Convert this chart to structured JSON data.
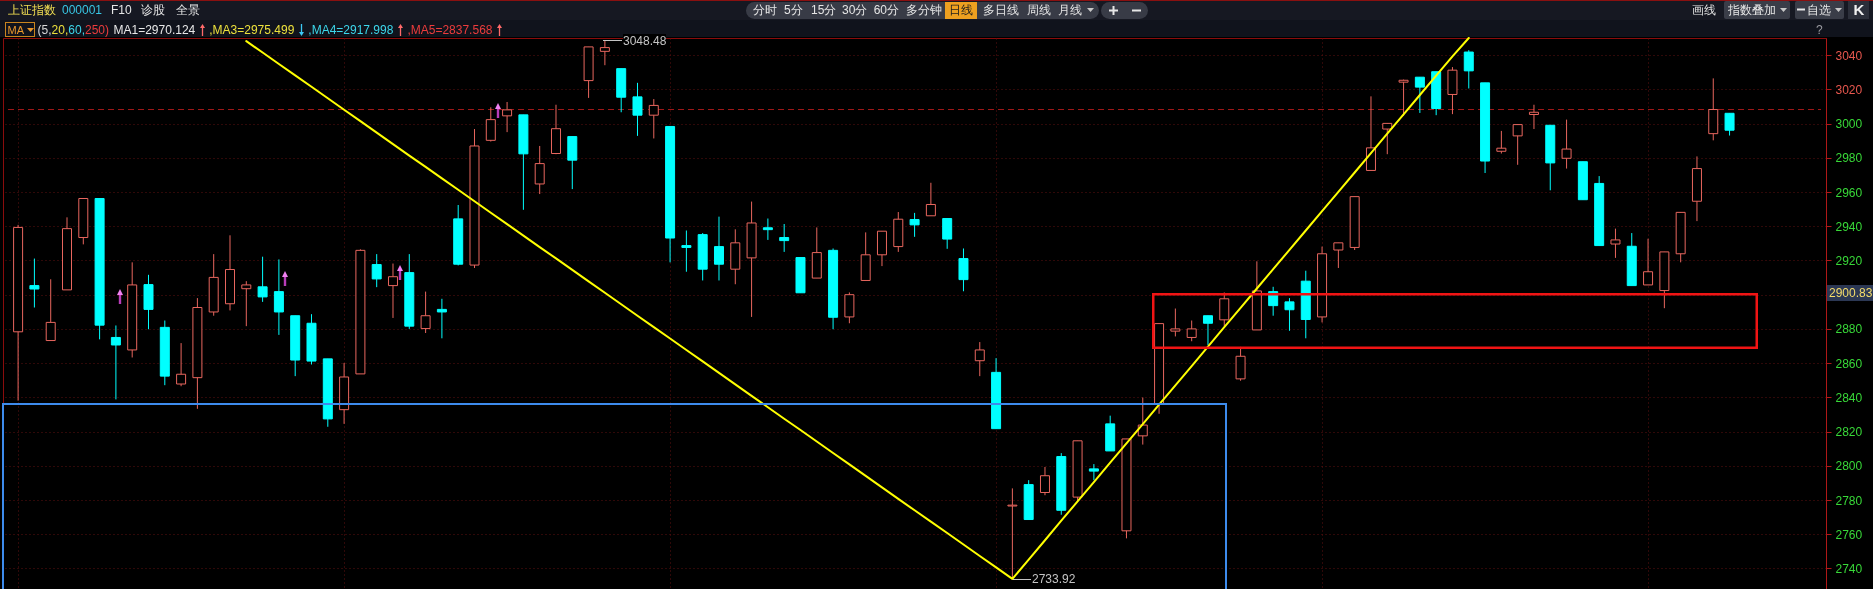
{
  "chart_data": {
    "type": "candlestick",
    "title": "上证指数",
    "subtitle": "000001",
    "categories": [
      null,
      null,
      null,
      null,
      null,
      null,
      null,
      null,
      null,
      null,
      null,
      null,
      null,
      null,
      null,
      null,
      null,
      null,
      null,
      null,
      null,
      null,
      null,
      null,
      null,
      null,
      null,
      null,
      null,
      null,
      null,
      null,
      null,
      null,
      null,
      null,
      null,
      null,
      null,
      null,
      null,
      null,
      null,
      null,
      null,
      null,
      null,
      null,
      null,
      null,
      null,
      null,
      null,
      null,
      null,
      null,
      null,
      null,
      null,
      null,
      null,
      null,
      null,
      null,
      null,
      null,
      null,
      null,
      null,
      null,
      null,
      null,
      null,
      null,
      null,
      null,
      null,
      null,
      null,
      null,
      null,
      null,
      null,
      null,
      null,
      null,
      null,
      null,
      null,
      null,
      null,
      null,
      null,
      null,
      null,
      null,
      null,
      null,
      null,
      null,
      null,
      null,
      null,
      null,
      null,
      null
    ],
    "ohlc": [
      [
        2878.3,
        2940.8,
        2838.1,
        2939.3
      ],
      [
        2905.3,
        2921.1,
        2892.5,
        2903.3
      ],
      [
        2873.2,
        2909.0,
        2873.2,
        2883.8
      ],
      [
        2902.8,
        2945.2,
        2902.8,
        2938.6
      ],
      [
        2933.4,
        2956.2,
        2929.4,
        2956.2
      ],
      [
        2956.2,
        2956.2,
        2873.9,
        2882.2
      ],
      [
        2875.0,
        2882.0,
        2838.8,
        2870.6
      ],
      [
        2867.7,
        2918.9,
        2863.3,
        2905.7
      ],
      [
        2905.9,
        2911.6,
        2879.8,
        2891.4
      ],
      [
        2880.9,
        2884.9,
        2847.1,
        2852.4
      ],
      [
        2847.8,
        2871.7,
        2846.5,
        2853.5
      ],
      [
        2851.5,
        2898.0,
        2833.3,
        2892.5
      ],
      [
        2889.9,
        2923.7,
        2887.7,
        2910.1
      ],
      [
        2894.7,
        2934.7,
        2890.8,
        2914.7
      ],
      [
        2903.5,
        2907.9,
        2881.6,
        2905.7
      ],
      [
        2904.6,
        2922.2,
        2895.8,
        2898.7
      ],
      [
        2901.8,
        2920.6,
        2876.5,
        2889.9
      ],
      [
        2887.7,
        2887.7,
        2852.4,
        2861.8
      ],
      [
        2883.3,
        2888.6,
        2859.2,
        2861.2
      ],
      [
        2862.5,
        2862.5,
        2822.8,
        2827.4
      ],
      [
        2832.8,
        2860.1,
        2824.5,
        2851.9
      ],
      [
        2853.7,
        2926.5,
        2853.7,
        2925.9
      ],
      [
        2917.6,
        2923.7,
        2904.4,
        2909.2
      ],
      [
        2905.3,
        2918.2,
        2886.4,
        2910.5
      ],
      [
        2912.9,
        2923.7,
        2880.0,
        2881.6
      ],
      [
        2880.2,
        2901.8,
        2877.6,
        2887.7
      ],
      [
        2891.4,
        2897.6,
        2874.5,
        2889.9
      ],
      [
        2944.3,
        2952.4,
        2917.1,
        2917.8
      ],
      [
        2917.3,
        2996.8,
        2915.6,
        2986.9
      ],
      [
        2990.2,
        3009.5,
        2989.5,
        3002.3
      ],
      [
        3004.5,
        3012.6,
        2995.0,
        3008.0
      ],
      [
        3005.1,
        3005.1,
        2949.6,
        2982.3
      ],
      [
        2964.7,
        2986.9,
        2958.8,
        2976.6
      ],
      [
        2982.5,
        3011.0,
        2982.1,
        2997.0
      ],
      [
        2992.4,
        2992.4,
        2961.7,
        2978.6
      ],
      [
        3025.1,
        3044.8,
        3015.0,
        3044.8
      ],
      [
        3042.2,
        3048.48,
        3034.1,
        3044.4
      ],
      [
        3032.1,
        3032.1,
        3006.6,
        3015.4
      ],
      [
        3015.6,
        3023.8,
        2992.8,
        3004.9
      ],
      [
        3004.9,
        3014.3,
        2991.3,
        3010.6
      ],
      [
        2998.3,
        2998.3,
        2918.9,
        2933.1
      ],
      [
        2928.7,
        2937.5,
        2913.4,
        2927.6
      ],
      [
        2935.1,
        2936.0,
        2908.3,
        2914.9
      ],
      [
        2928.1,
        2945.6,
        2908.3,
        2917.8
      ],
      [
        2914.9,
        2938.2,
        2906.1,
        2930.3
      ],
      [
        2921.5,
        2954.4,
        2887.0,
        2941.9
      ],
      [
        2939.1,
        2944.5,
        2932.0,
        2938.0
      ],
      [
        2933.4,
        2941.3,
        2925.0,
        2931.6
      ],
      [
        2921.7,
        2921.7,
        2901.1,
        2901.1
      ],
      [
        2909.7,
        2939.3,
        2909.7,
        2924.6
      ],
      [
        2925.9,
        2927.0,
        2879.8,
        2886.8
      ],
      [
        2887.0,
        2901.3,
        2883.3,
        2900.0
      ],
      [
        2908.3,
        2936.4,
        2908.3,
        2923.3
      ],
      [
        2923.3,
        2937.1,
        2916.7,
        2937.1
      ],
      [
        2928.1,
        2948.3,
        2925.0,
        2944.1
      ],
      [
        2943.9,
        2947.8,
        2933.8,
        2940.8
      ],
      [
        2946.1,
        2965.4,
        2946.1,
        2952.7
      ],
      [
        2944.5,
        2944.5,
        2926.8,
        2932.5
      ],
      [
        2921.1,
        2927.0,
        2902.0,
        2908.8
      ],
      [
        2861.4,
        2872.3,
        2852.4,
        2867.7
      ],
      [
        2854.6,
        2862.9,
        2821.7,
        2821.7
      ],
      [
        2776.5,
        2786.8,
        2733.92,
        2777.0
      ],
      [
        2789.0,
        2791.6,
        2768.6,
        2768.6
      ],
      [
        2784.4,
        2799.3,
        2782.8,
        2794.2
      ],
      [
        2805.4,
        2807.4,
        2771.4,
        2774.0
      ],
      [
        2781.7,
        2814.6,
        2778.9,
        2814.6
      ],
      [
        2798.2,
        2801.0,
        2791.6,
        2796.9
      ],
      [
        2824.5,
        2829.3,
        2808.7,
        2808.7
      ],
      [
        2762.0,
        2815.7,
        2757.6,
        2815.7
      ],
      [
        2817.5,
        2839.9,
        2812.4,
        2823.8
      ],
      [
        2835.9,
        2883.1,
        2830.4,
        2883.1
      ],
      [
        2878.7,
        2891.9,
        2875.6,
        2880.0
      ],
      [
        2875.0,
        2884.9,
        2872.8,
        2880.0
      ],
      [
        2887.7,
        2887.7,
        2870.6,
        2883.3
      ],
      [
        2885.3,
        2901.3,
        2881.6,
        2897.6
      ],
      [
        2850.8,
        2869.5,
        2849.7,
        2864.0
      ],
      [
        2879.4,
        2919.5,
        2879.4,
        2902.2
      ],
      [
        2901.8,
        2904.6,
        2887.7,
        2893.6
      ],
      [
        2895.8,
        2898.0,
        2878.9,
        2891.2
      ],
      [
        2907.9,
        2914.0,
        2874.5,
        2885.5
      ],
      [
        2887.0,
        2928.1,
        2883.8,
        2923.9
      ],
      [
        2926.1,
        2930.3,
        2915.6,
        2930.3
      ],
      [
        2927.6,
        2957.3,
        2926.1,
        2957.3
      ],
      [
        2972.6,
        3015.9,
        2972.6,
        2985.8
      ],
      [
        2996.8,
        3000.1,
        2982.1,
        3000.1
      ],
      [
        3024.2,
        3025.7,
        3004.5,
        3025.3
      ],
      [
        3027.1,
        3027.1,
        3006.2,
        3021.3
      ],
      [
        3030.3,
        3030.3,
        3004.9,
        3008.8
      ],
      [
        3017.0,
        3033.0,
        3005.5,
        3031.2
      ],
      [
        3041.8,
        3042.9,
        3020.5,
        3030.8
      ],
      [
        3023.8,
        3023.8,
        2971.1,
        2978.1
      ],
      [
        2983.8,
        2995.7,
        2982.5,
        2985.6
      ],
      [
        2992.8,
        2999.4,
        2975.9,
        2999.4
      ],
      [
        3005.3,
        3011.0,
        2996.8,
        3006.6
      ],
      [
        2999.0,
        2999.0,
        2961.0,
        2977.0
      ],
      [
        2979.7,
        3002.3,
        2973.7,
        2985.1
      ],
      [
        2977.7,
        2977.7,
        2955.5,
        2955.5
      ],
      [
        2965.0,
        2969.3,
        2928.7,
        2928.7
      ],
      [
        2929.6,
        2938.6,
        2921.5,
        2932.0
      ],
      [
        2928.3,
        2936.0,
        2905.3,
        2905.3
      ],
      [
        2905.7,
        2932.7,
        2905.7,
        2913.4
      ],
      [
        2902.4,
        2925.0,
        2892.1,
        2925.0
      ],
      [
        2923.9,
        2948.1,
        2918.9,
        2948.1
      ],
      [
        2954.6,
        2980.8,
        2943.0,
        2973.7
      ],
      [
        2994.1,
        3026.4,
        2990.2,
        3008.2
      ],
      [
        3006.0,
        3006.0,
        2993.0,
        2996.1
      ]
    ],
    "colors": [
      "#e8665e",
      "#00ffff",
      "#e8665e",
      "#e8665e",
      "#e8665e",
      "#00ffff",
      "#00ffff",
      "#e8665e",
      "#00ffff",
      "#00ffff",
      "#e8665e",
      "#e8665e",
      "#e8665e",
      "#e8665e",
      "#e8665e",
      "#00ffff",
      "#00ffff",
      "#00ffff",
      "#00ffff",
      "#00ffff",
      "#e8665e",
      "#e8665e",
      "#00ffff",
      "#e8665e",
      "#00ffff",
      "#e8665e",
      "#00ffff",
      "#00ffff",
      "#e8665e",
      "#e8665e",
      "#e8665e",
      "#00ffff",
      "#e8665e",
      "#e8665e",
      "#00ffff",
      "#e8665e",
      "#e8665e",
      "#00ffff",
      "#00ffff",
      "#e8665e",
      "#00ffff",
      "#00ffff",
      "#00ffff",
      "#00ffff",
      "#e8665e",
      "#e8665e",
      "#00ffff",
      "#00ffff",
      "#00ffff",
      "#e8665e",
      "#00ffff",
      "#e8665e",
      "#e8665e",
      "#e8665e",
      "#e8665e",
      "#00ffff",
      "#e8665e",
      "#00ffff",
      "#00ffff",
      "#e8665e",
      "#00ffff",
      "#e8665e",
      "#00ffff",
      "#e8665e",
      "#00ffff",
      "#e8665e",
      "#00ffff",
      "#00ffff",
      "#e8665e",
      "#e8665e",
      "#e8665e",
      "#e8665e",
      "#e8665e",
      "#00ffff",
      "#e8665e",
      "#e8665e",
      "#e8665e",
      "#00ffff",
      "#00ffff",
      "#00ffff",
      "#e8665e",
      "#e8665e",
      "#e8665e",
      "#e8665e",
      "#e8665e",
      "#e8665e",
      "#00ffff",
      "#00ffff",
      "#e8665e",
      "#00ffff",
      "#00ffff",
      "#e8665e",
      "#e8665e",
      "#e8665e",
      "#00ffff",
      "#e8665e",
      "#00ffff",
      "#00ffff",
      "#e8665e",
      "#00ffff",
      "#e8665e",
      "#e8665e",
      "#e8665e",
      "#e8665e",
      "#e8665e",
      "#00ffff"
    ],
    "series": [
      {
        "type": "line",
        "color": "#ffff00",
        "values": [
          null,
          null,
          null,
          null,
          null,
          null,
          null,
          null,
          null,
          null,
          null,
          null,
          null,
          null,
          3048.2,
          3041.5,
          3034.8,
          3028.2,
          3021.5,
          3014.8,
          3008.1,
          3001.4,
          2994.7,
          2988.0,
          2981.3,
          2974.7,
          2968.0,
          2961.3,
          2954.6,
          2947.9,
          2941.2,
          2934.5,
          2927.8,
          2921.2,
          2914.5,
          2907.8,
          2901.1,
          2894.4,
          2887.7,
          2881.0,
          2874.4,
          2867.7,
          2861.0,
          2854.3,
          2847.6,
          2840.9,
          2834.2,
          2827.5,
          2820.9,
          2814.2,
          2807.5,
          2800.8,
          2794.1,
          2787.4,
          2780.7,
          2774.0,
          2767.4,
          2760.7,
          2754.0,
          2747.3,
          2740.6,
          2733.9,
          2745.2,
          2756.5,
          2767.9,
          2779.2,
          2790.5,
          2801.8,
          2813.1,
          2824.4,
          2835.7,
          2847.0,
          2858.3,
          2869.6,
          2881.0,
          2892.3,
          2903.6,
          2914.9,
          2926.2,
          2937.5,
          2948.8,
          2960.1,
          2971.4,
          2982.7,
          2994.1,
          3005.4,
          3016.7,
          3028.0,
          3039.3,
          3050,
          null,
          null,
          null,
          null,
          null,
          null,
          null,
          null,
          null,
          null,
          null,
          null,
          null,
          null,
          null,
          null
        ]
      }
    ],
    "ylim": [
      2728,
      3050
    ],
    "yticks": [
      2740,
      2760,
      2780,
      2800,
      2820,
      2840,
      2860,
      2880,
      {
        "value": 2900,
        "label": null
      },
      2920,
      2940,
      2960,
      2980,
      3000,
      3020,
      3040
    ],
    "grid": true,
    "tick_labels": "y",
    "ref_lines": [
      {
        "axis": "y",
        "value": 3008.2,
        "color": "#a01818",
        "line_style": "dashed"
      }
    ],
    "annotations": [
      "F10",
      "诊股",
      "全景",
      "分时",
      "5分",
      "15分",
      "30分",
      "60分",
      "多分钟",
      "日线",
      "多日线",
      "周线",
      "月线",
      "画线",
      "指数叠加",
      "自选",
      "K",
      "MA",
      "(5,20,60,250)",
      "MA1=2970.124",
      ",MA3=2975.499",
      ",MA4=2917.998",
      ",MA5=2837.568",
      "?",
      "3048.48",
      "2733.92",
      "2900.83"
    ]
  }
}
